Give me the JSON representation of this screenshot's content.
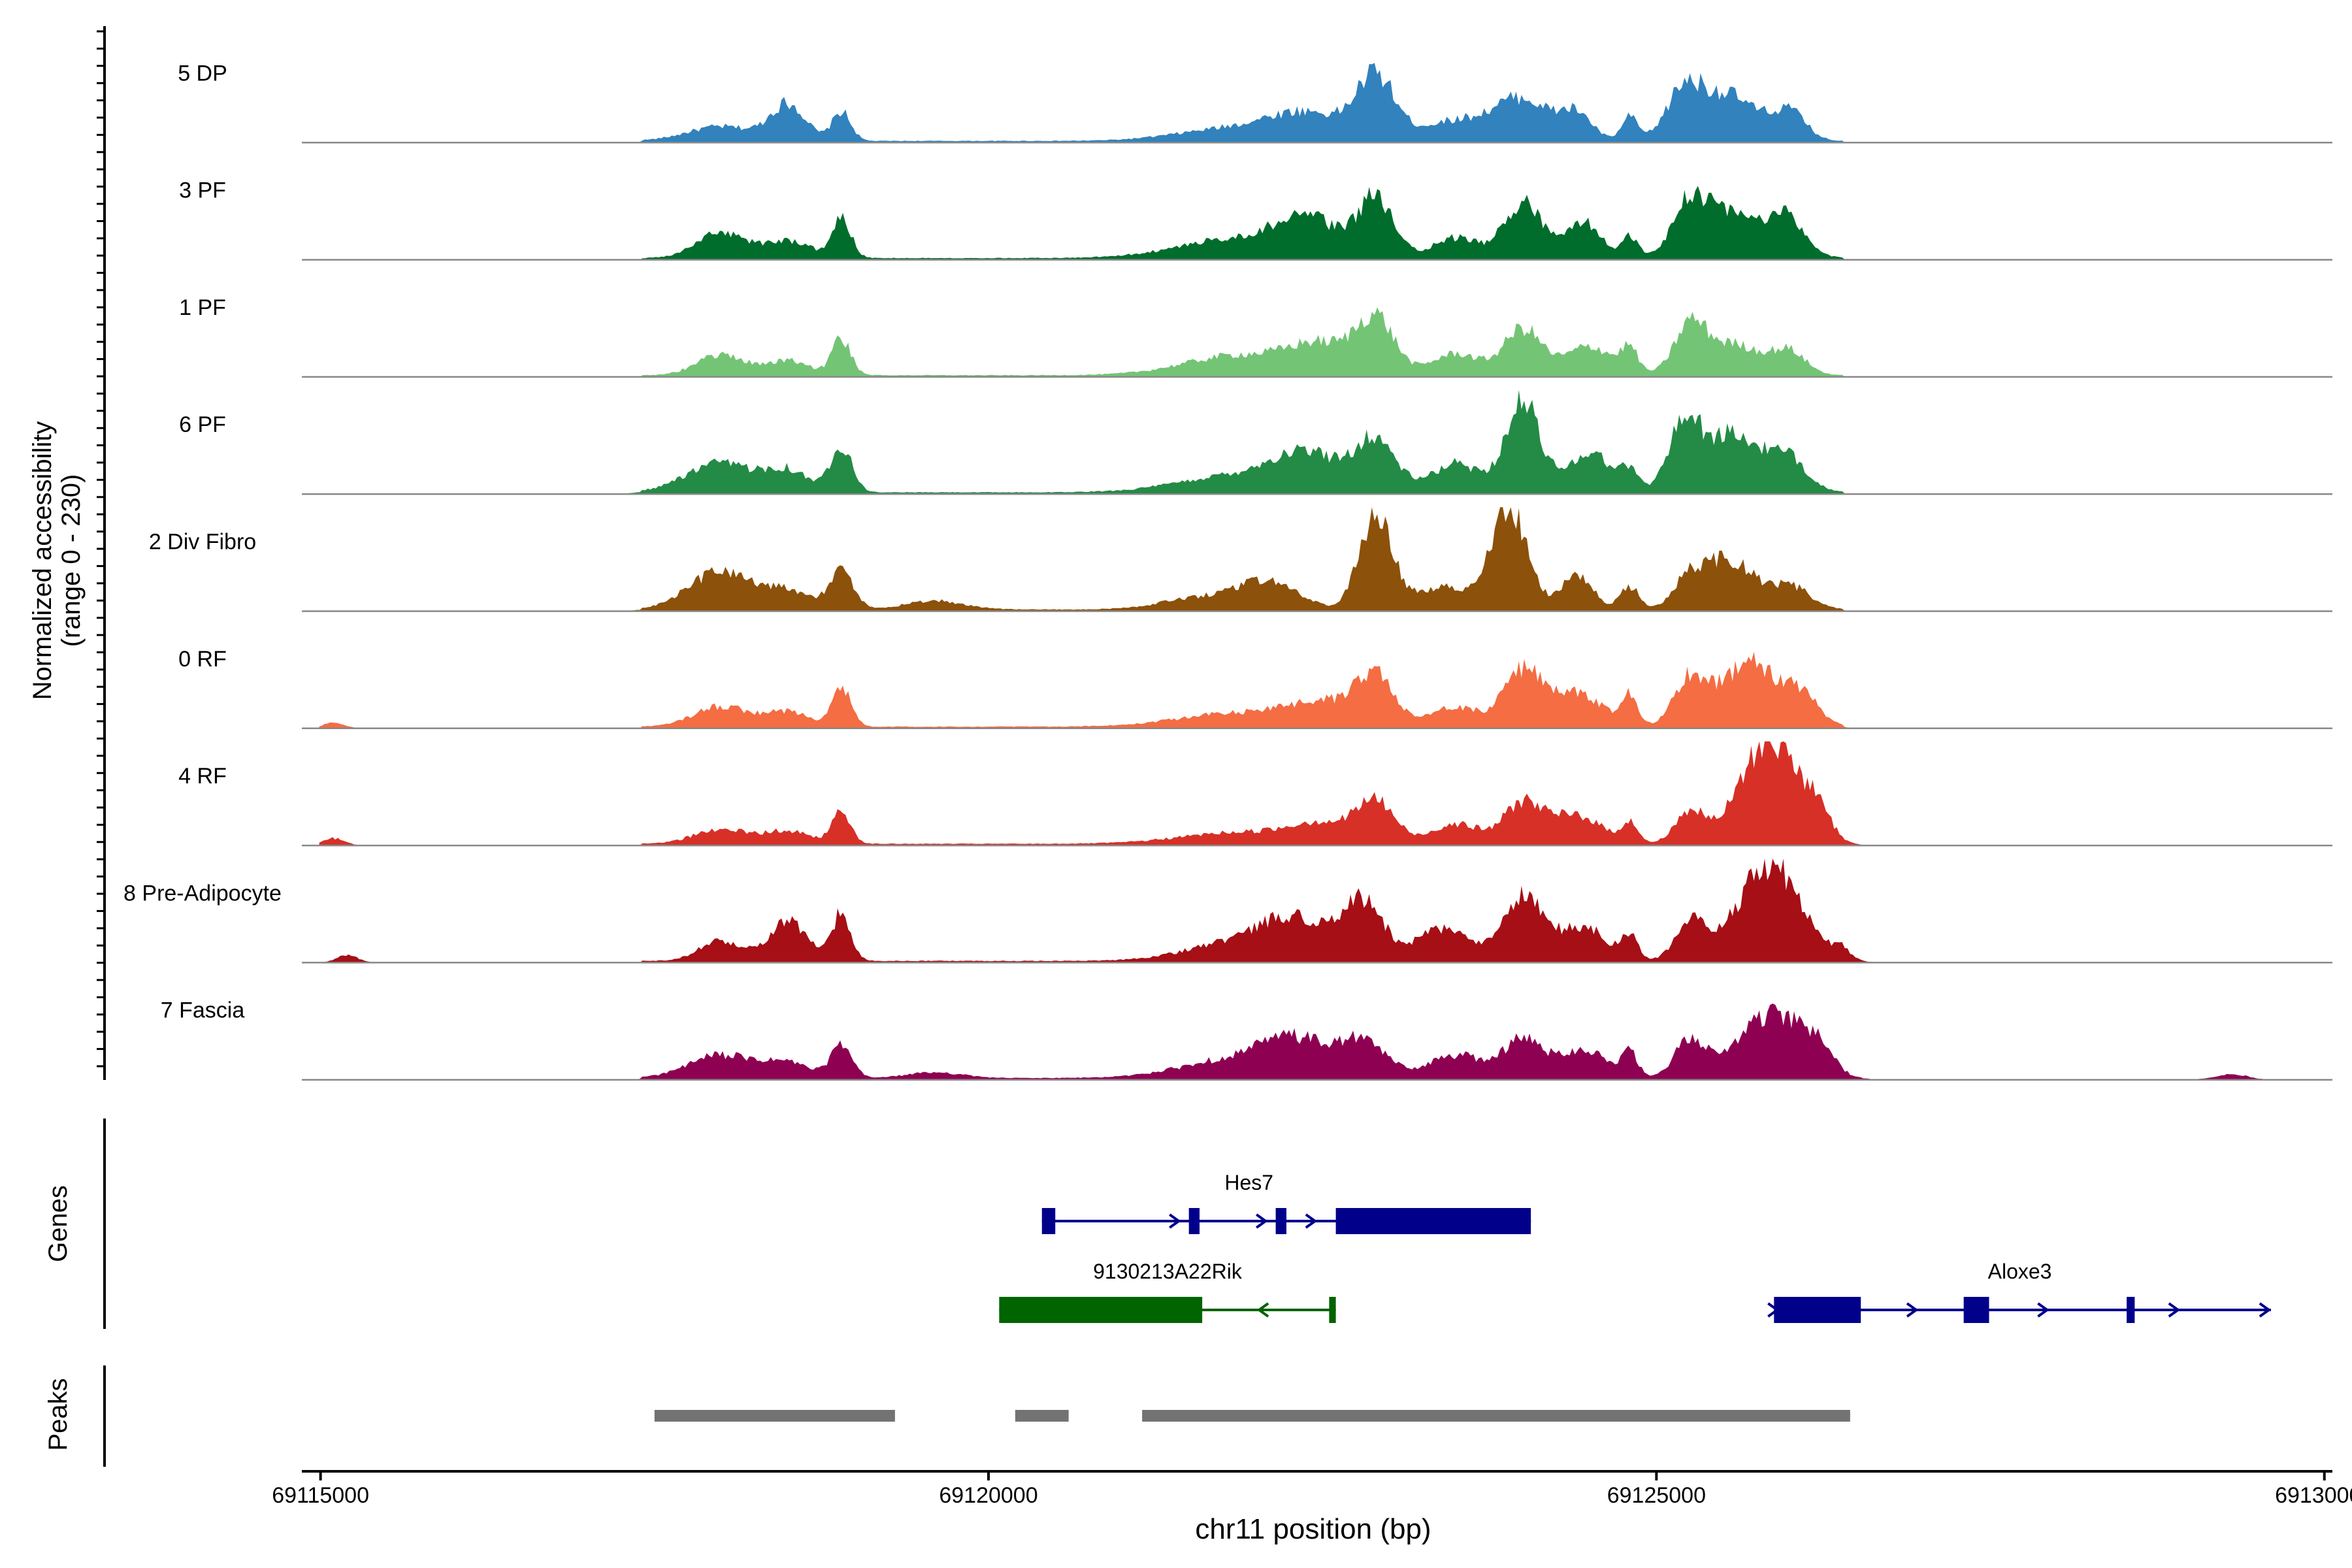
{
  "chart_data": {
    "type": "area",
    "chromosome": "chr11",
    "xlabel": "chr11 position (bp)",
    "ylabel_lines": [
      "Normalized accessibility",
      "(range 0 - 230)"
    ],
    "ylim": [
      0,
      230
    ],
    "xlim": [
      69114860,
      69130060
    ],
    "x_ticks": [
      69115000,
      69120000,
      69125000,
      69130000
    ],
    "x_tick_labels": [
      "69115000",
      "69120000",
      "69125000",
      "69130000"
    ],
    "tracks": [
      {
        "name": "5 DP",
        "color": "#3182bd",
        "peak_max": 72,
        "peaks": [
          [
            69118000,
            10,
            250
          ],
          [
            69118500,
            25,
            130
          ],
          [
            69118900,
            20,
            70
          ],
          [
            69121800,
            8,
            400
          ],
          [
            69122400,
            18,
            300
          ],
          [
            69122900,
            42,
            140
          ],
          [
            69123500,
            14,
            260
          ],
          [
            69124000,
            28,
            200
          ],
          [
            69124400,
            18,
            120
          ],
          [
            69124800,
            16,
            60
          ],
          [
            69125200,
            25,
            120
          ],
          [
            69125500,
            33,
            250
          ],
          [
            69126000,
            18,
            120
          ]
        ]
      },
      {
        "name": "3 PF",
        "color": "#006d2c",
        "peak_max": 72,
        "peaks": [
          [
            69118000,
            18,
            180
          ],
          [
            69118500,
            12,
            170
          ],
          [
            69118900,
            28,
            70
          ],
          [
            69121900,
            14,
            450
          ],
          [
            69122400,
            22,
            230
          ],
          [
            69122900,
            40,
            130
          ],
          [
            69123500,
            14,
            170
          ],
          [
            69124000,
            38,
            140
          ],
          [
            69124450,
            25,
            130
          ],
          [
            69124800,
            14,
            60
          ],
          [
            69125250,
            28,
            110
          ],
          [
            69125550,
            33,
            270
          ],
          [
            69126000,
            22,
            120
          ]
        ]
      },
      {
        "name": "1 PF",
        "color": "#74c476",
        "peak_max": 72,
        "peaks": [
          [
            69118000,
            14,
            180
          ],
          [
            69118500,
            10,
            160
          ],
          [
            69118900,
            25,
            70
          ],
          [
            69121900,
            14,
            420
          ],
          [
            69122500,
            18,
            230
          ],
          [
            69122900,
            38,
            140
          ],
          [
            69123500,
            15,
            180
          ],
          [
            69124000,
            32,
            140
          ],
          [
            69124500,
            20,
            180
          ],
          [
            69124800,
            16,
            60
          ],
          [
            69125250,
            28,
            110
          ],
          [
            69125550,
            22,
            250
          ],
          [
            69126000,
            14,
            120
          ]
        ]
      },
      {
        "name": "6 PF",
        "color": "#238b45",
        "peak_max": 72,
        "peaks": [
          [
            69118000,
            20,
            260
          ],
          [
            69118500,
            14,
            160
          ],
          [
            69118900,
            33,
            80
          ],
          [
            69121900,
            12,
            450
          ],
          [
            69122400,
            22,
            260
          ],
          [
            69122900,
            34,
            150
          ],
          [
            69123500,
            20,
            180
          ],
          [
            69124000,
            62,
            130
          ],
          [
            69124500,
            28,
            160
          ],
          [
            69124800,
            14,
            60
          ],
          [
            69125200,
            38,
            110
          ],
          [
            69125550,
            40,
            250
          ],
          [
            69126000,
            18,
            140
          ]
        ]
      },
      {
        "name": "2 Div Fibro",
        "color": "#8c510a",
        "peak_max": 72,
        "peaks": [
          [
            69118000,
            26,
            240
          ],
          [
            69118500,
            12,
            180
          ],
          [
            69118900,
            25,
            90
          ],
          [
            69119600,
            6,
            220
          ],
          [
            69121600,
            8,
            300
          ],
          [
            69122100,
            18,
            220
          ],
          [
            69122900,
            68,
            120
          ],
          [
            69123400,
            16,
            200
          ],
          [
            69123900,
            72,
            130
          ],
          [
            69124400,
            24,
            120
          ],
          [
            69124800,
            16,
            70
          ],
          [
            69125250,
            20,
            120
          ],
          [
            69125550,
            34,
            180
          ],
          [
            69126000,
            16,
            150
          ]
        ]
      },
      {
        "name": "0 RF",
        "color": "#f46d43",
        "peak_max": 72,
        "peaks": [
          [
            69115100,
            4,
            80
          ],
          [
            69118000,
            14,
            200
          ],
          [
            69118500,
            10,
            170
          ],
          [
            69118900,
            28,
            70
          ],
          [
            69121900,
            10,
            450
          ],
          [
            69122500,
            14,
            230
          ],
          [
            69122900,
            36,
            140
          ],
          [
            69123500,
            14,
            180
          ],
          [
            69124000,
            38,
            140
          ],
          [
            69124400,
            24,
            190
          ],
          [
            69124800,
            22,
            60
          ],
          [
            69125250,
            32,
            120
          ],
          [
            69125700,
            44,
            220
          ],
          [
            69126100,
            18,
            120
          ]
        ]
      },
      {
        "name": "4 RF",
        "color": "#d73027",
        "peak_max": 72,
        "peaks": [
          [
            69115100,
            5,
            80
          ],
          [
            69118000,
            10,
            200
          ],
          [
            69118500,
            9,
            170
          ],
          [
            69118900,
            22,
            70
          ],
          [
            69121900,
            8,
            450
          ],
          [
            69122500,
            12,
            230
          ],
          [
            69122900,
            28,
            140
          ],
          [
            69123500,
            14,
            180
          ],
          [
            69124000,
            28,
            140
          ],
          [
            69124400,
            20,
            190
          ],
          [
            69124800,
            14,
            60
          ],
          [
            69125250,
            22,
            110
          ],
          [
            69125850,
            72,
            220
          ],
          [
            69126200,
            14,
            100
          ]
        ]
      },
      {
        "name": "8 Pre-Adipocyte",
        "color": "#a50f15",
        "peak_max": 72,
        "peaks": [
          [
            69115200,
            5,
            80
          ],
          [
            69118000,
            14,
            160
          ],
          [
            69118500,
            28,
            140
          ],
          [
            69118900,
            33,
            70
          ],
          [
            69121900,
            14,
            380
          ],
          [
            69122300,
            24,
            220
          ],
          [
            69122800,
            42,
            150
          ],
          [
            69123400,
            22,
            200
          ],
          [
            69124000,
            44,
            150
          ],
          [
            69124450,
            24,
            170
          ],
          [
            69124800,
            16,
            60
          ],
          [
            69125250,
            26,
            110
          ],
          [
            69125850,
            66,
            240
          ],
          [
            69126400,
            6,
            60
          ]
        ]
      },
      {
        "name": "7 Fascia",
        "color": "#8e0152",
        "peak_max": 72,
        "peaks": [
          [
            69118000,
            16,
            240
          ],
          [
            69118500,
            10,
            170
          ],
          [
            69118900,
            22,
            80
          ],
          [
            69119600,
            4,
            200
          ],
          [
            69121900,
            14,
            420
          ],
          [
            69122300,
            20,
            230
          ],
          [
            69122800,
            24,
            180
          ],
          [
            69123500,
            16,
            200
          ],
          [
            69124000,
            26,
            150
          ],
          [
            69124450,
            20,
            180
          ],
          [
            69124800,
            16,
            60
          ],
          [
            69125250,
            26,
            110
          ],
          [
            69125850,
            44,
            250
          ],
          [
            69126200,
            14,
            120
          ],
          [
            69129300,
            4,
            120
          ]
        ]
      }
    ],
    "genes_axis_label": "Genes",
    "genes": [
      {
        "name": "Hes7",
        "strand": "+",
        "color": "#00008b",
        "row": 1,
        "start": 69120400,
        "end": 69124060,
        "exons": [
          [
            69120400,
            69120500
          ],
          [
            69121500,
            69121580
          ],
          [
            69122150,
            69122230
          ],
          [
            69122600,
            69124060
          ]
        ],
        "arrows": [
          69120450,
          69121400,
          69122050,
          69122420
        ]
      },
      {
        "name": "9130213A22Rik",
        "strand": "-",
        "color": "#006400",
        "row": 2,
        "start": 69120080,
        "end": 69122600,
        "exons": [
          [
            69120080,
            69121600
          ],
          [
            69122550,
            69122600
          ]
        ],
        "arrows": [
          69122050
        ]
      },
      {
        "name": "Aloxe3",
        "strand": "+",
        "color": "#00008b",
        "row": 2,
        "start": 69125880,
        "end": 69129600,
        "exons": [
          [
            69125880,
            69126530
          ],
          [
            69127300,
            69127490
          ],
          [
            69128520,
            69128580
          ]
        ],
        "arrows": [
          69125880,
          69126920,
          69127900,
          69128880,
          69129560
        ]
      }
    ],
    "peaks_axis_label": "Peaks",
    "peak_regions": [
      [
        69117500,
        69119300
      ],
      [
        69120200,
        69120600
      ],
      [
        69121150,
        69126450
      ]
    ]
  }
}
